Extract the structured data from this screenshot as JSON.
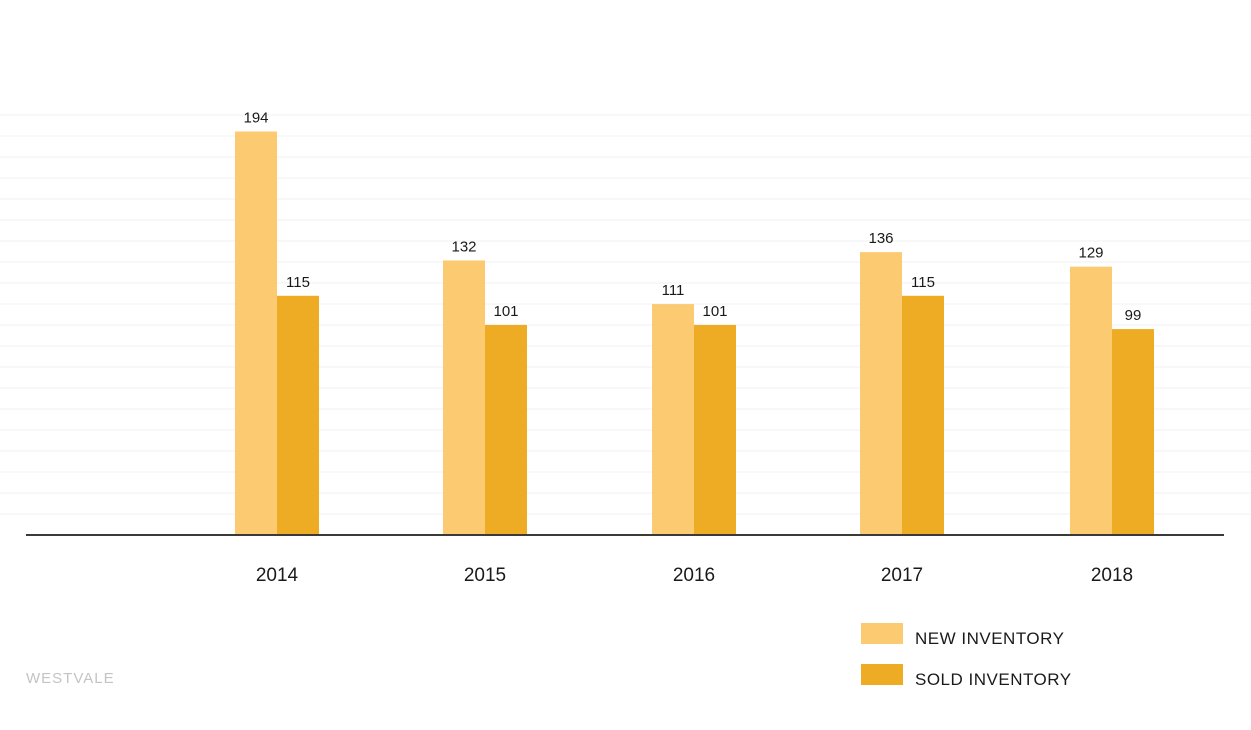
{
  "chart_data": {
    "type": "bar",
    "categories": [
      "2014",
      "2015",
      "2016",
      "2017",
      "2018"
    ],
    "series": [
      {
        "name": "NEW INVENTORY",
        "values": [
          194,
          132,
          111,
          136,
          129
        ],
        "color": "#FCCA70"
      },
      {
        "name": "SOLD INVENTORY",
        "values": [
          115,
          101,
          101,
          115,
          99
        ],
        "color": "#EDAC24"
      }
    ],
    "data_labels": true,
    "ylim": [
      0,
      200
    ],
    "grid": true,
    "legend_position": "bottom-right"
  },
  "legend": {
    "new_label": "NEW INVENTORY",
    "sold_label": "SOLD INVENTORY",
    "new_color": "#FCCA70",
    "sold_color": "#EDAC24"
  },
  "brand": "WESTVALE"
}
